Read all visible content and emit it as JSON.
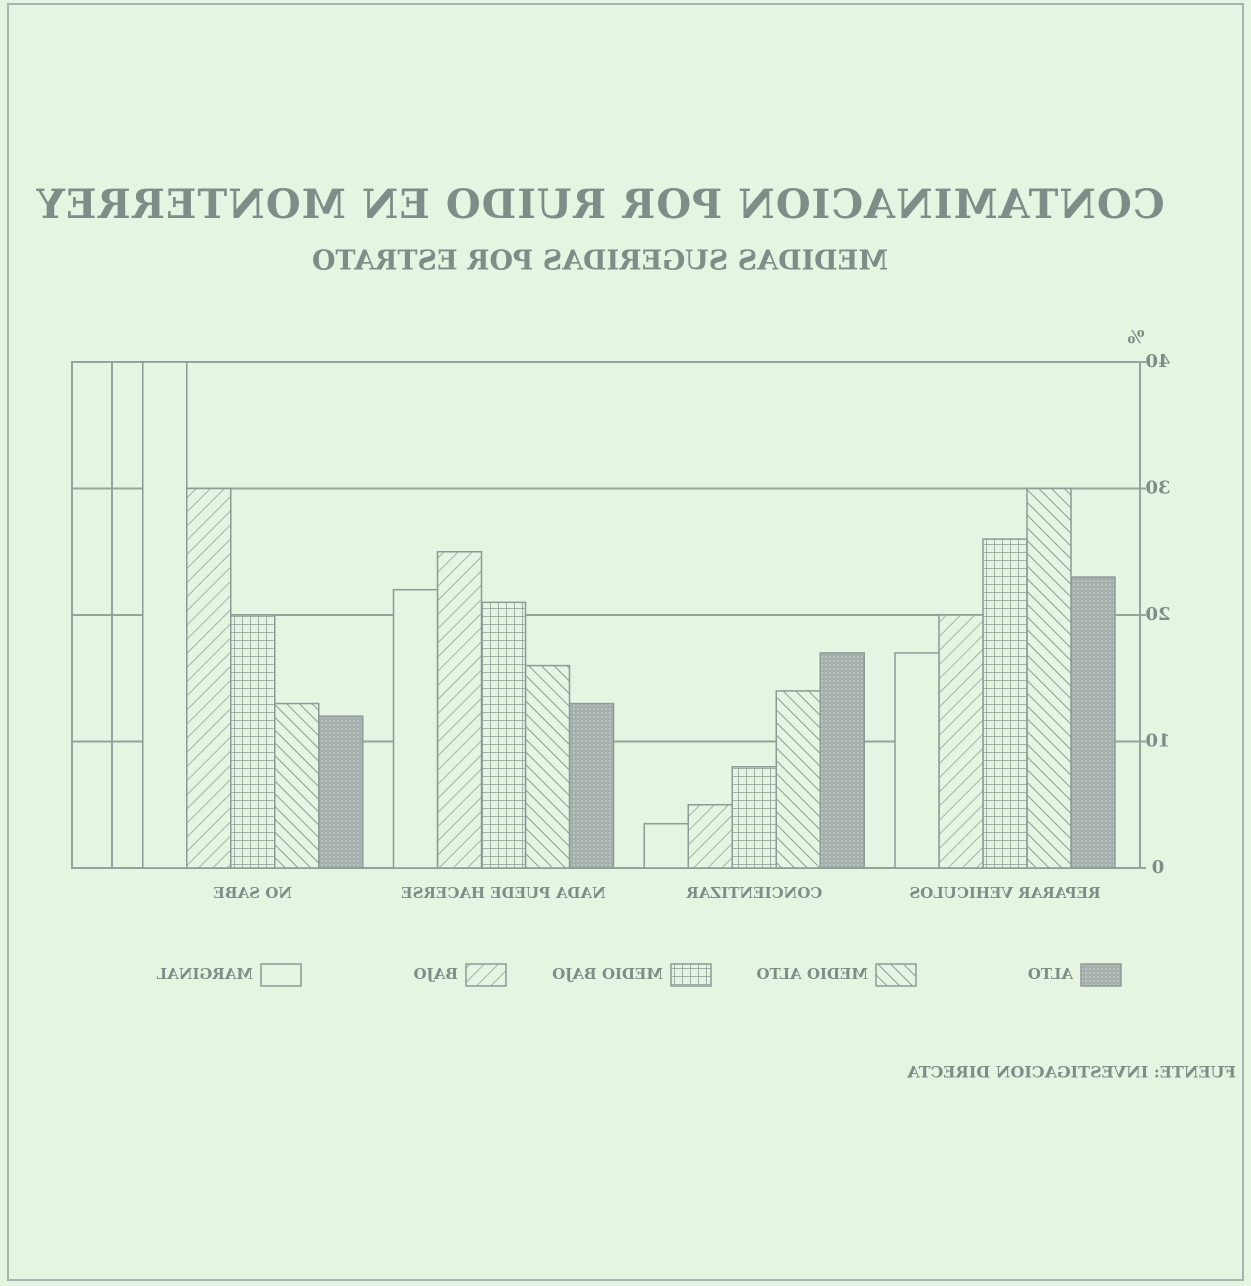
{
  "chart_data": {
    "type": "bar",
    "title": "CONTAMINACION POR RUIDO EN MONTERREY",
    "subtitle": "MEDIDAS SUGERIDAS POR ESTRATO",
    "y_label": "%",
    "source": "FUENTE: INVESTIGACION DIRECTA",
    "categories": [
      "REPARAR VEHICULOS",
      "CONCIENTIZAR",
      "NADA PUEDE HACERSE",
      "NO SABE"
    ],
    "series": [
      {
        "name": "ALTO",
        "color": "#a5b0ac",
        "values": [
          23,
          17,
          13,
          12
        ]
      },
      {
        "name": "MEDIO ALTO",
        "color": "#8e9a96",
        "values": [
          30,
          14,
          16,
          13
        ]
      },
      {
        "name": "MEDIO BAJO",
        "color": "#8e9a96",
        "values": [
          26,
          8,
          21,
          20
        ]
      },
      {
        "name": "BAJO",
        "color": "#8e9a96",
        "values": [
          20,
          5,
          25,
          30
        ]
      },
      {
        "name": "MARGINAL",
        "color": "#e6f5e2",
        "values": [
          17,
          3.5,
          22,
          40
        ]
      }
    ],
    "ylim": [
      0,
      40
    ],
    "yticks": [
      0,
      10,
      20,
      30,
      40
    ],
    "grid": true,
    "mirrored": true
  }
}
